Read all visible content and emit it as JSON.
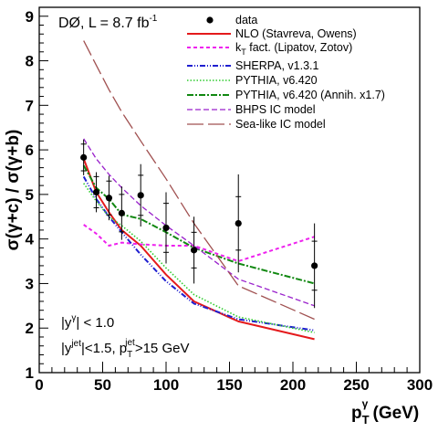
{
  "chart_data": {
    "type": "line",
    "title": "DØ, L = 8.7 fb",
    "title_sup": "-1",
    "xlabel_main": "p",
    "xlabel_sub": "T",
    "xlabel_sup": "γ",
    "xlabel_unit": " (GeV)",
    "ylabel": "σ(γ+c) / σ(γ+b)",
    "xlim": [
      0,
      300
    ],
    "ylim": [
      1,
      9.2
    ],
    "x_ticks": [
      0,
      50,
      100,
      150,
      200,
      250,
      300
    ],
    "y_ticks": [
      1,
      2,
      3,
      4,
      5,
      6,
      7,
      8,
      9
    ],
    "grid": false,
    "legend_position": "top-right",
    "annotations": [
      {
        "id": "eta-gamma",
        "base": "|y",
        "sup": "γ",
        "rest": "| < 1.0"
      },
      {
        "id": "eta-jet",
        "base": "|y",
        "sup": "jet",
        "mid": "|<1.5, p",
        "sub2": "T",
        "sup2": "jet",
        "rest": ">15 GeV"
      }
    ],
    "data_points": {
      "name": "data",
      "x": [
        35,
        45,
        55,
        65,
        80,
        100,
        122,
        157,
        217
      ],
      "y": [
        5.83,
        5.05,
        4.92,
        4.58,
        4.98,
        4.25,
        3.75,
        4.35,
        3.4
      ],
      "err_stat": [
        0.3,
        0.35,
        0.38,
        0.42,
        0.45,
        0.55,
        0.4,
        0.6,
        0.55
      ],
      "err_tot": [
        0.4,
        0.45,
        0.5,
        0.6,
        0.7,
        0.8,
        0.75,
        1.1,
        0.95
      ]
    },
    "series": [
      {
        "name": "NLO (Stavreva, Owens)",
        "color": "#e41a1c",
        "dash": "",
        "width": 2,
        "x": [
          35,
          45,
          55,
          65,
          80,
          100,
          122,
          157,
          217
        ],
        "y": [
          5.8,
          5.05,
          4.6,
          4.2,
          3.85,
          3.2,
          2.6,
          2.15,
          1.75
        ]
      },
      {
        "name": "k",
        "sub": "T",
        "rest": " fact. (Lipatov, Zotov)",
        "color": "#ee22ee",
        "dash": "4,3",
        "width": 2,
        "x": [
          35,
          45,
          55,
          65,
          80,
          100,
          122,
          157,
          217
        ],
        "y": [
          4.32,
          4.12,
          3.85,
          3.92,
          3.88,
          3.85,
          3.85,
          3.5,
          4.05
        ]
      },
      {
        "name": "SHERPA, v1.3.1",
        "color": "#1f1fd0",
        "dash": "6,2,1,2,1,2",
        "width": 2,
        "x": [
          35,
          45,
          55,
          65,
          80,
          100,
          122,
          157,
          217
        ],
        "y": [
          5.4,
          4.9,
          4.5,
          4.15,
          3.65,
          3.05,
          2.55,
          2.2,
          1.95
        ]
      },
      {
        "name": "PYTHIA, v6.420",
        "color": "#2ecc2e",
        "dash": "1.5,2",
        "width": 1.6,
        "x": [
          35,
          45,
          55,
          65,
          80,
          100,
          122,
          157,
          217
        ],
        "y": [
          5.25,
          4.85,
          4.5,
          4.3,
          3.95,
          3.35,
          2.75,
          2.25,
          1.9
        ]
      },
      {
        "name": "PYTHIA, v6.420 (Annih. x1.7)",
        "color": "#118811",
        "dash": "7,2,2,2",
        "width": 2,
        "x": [
          35,
          45,
          55,
          65,
          80,
          100,
          122,
          157,
          217
        ],
        "y": [
          5.65,
          5.15,
          4.9,
          4.55,
          4.45,
          4.15,
          3.8,
          3.45,
          3.0
        ]
      },
      {
        "name": "BHPS IC model",
        "color": "#9a22cc",
        "dash": "6,3",
        "width": 1.3,
        "x": [
          35,
          45,
          55,
          65,
          80,
          100,
          122,
          157,
          217
        ],
        "y": [
          6.25,
          5.8,
          5.45,
          5.15,
          4.75,
          4.3,
          3.85,
          3.1,
          2.5
        ]
      },
      {
        "name": "Sea-like IC model",
        "color": "#a05050",
        "dash": "18,5",
        "width": 1.3,
        "x": [
          35,
          45,
          55,
          65,
          80,
          100,
          122,
          157,
          217
        ],
        "y": [
          8.45,
          7.9,
          7.35,
          6.85,
          6.2,
          5.35,
          4.35,
          2.95,
          2.2
        ]
      }
    ]
  }
}
